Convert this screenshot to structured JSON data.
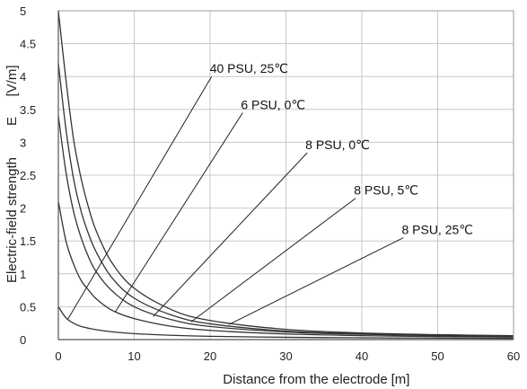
{
  "chart_data": {
    "type": "line",
    "title": "",
    "xlabel": "Distance from the electrode",
    "xlabel_unit": "[m]",
    "ylabel": "Electric-field strength",
    "ylabel_symbol": "E",
    "ylabel_unit": "[V/m]",
    "xlim": [
      0,
      60
    ],
    "ylim": [
      0,
      5
    ],
    "xticks": [
      0,
      10,
      20,
      30,
      40,
      50,
      60
    ],
    "yticks": [
      0,
      0.5,
      1,
      1.5,
      2,
      2.5,
      3,
      3.5,
      4,
      4.5,
      5
    ],
    "ytick_labels": [
      "0",
      "0.5",
      "1",
      "1.5",
      "2",
      "2.5",
      "3",
      "3.5",
      "4",
      "4.5",
      "5"
    ],
    "grid": true,
    "legend": "none",
    "line_color": "#333333",
    "series": [
      {
        "name": "40 PSU, 25℃",
        "x": [
          0,
          1,
          2,
          3,
          5,
          7,
          10,
          15,
          20,
          30,
          40,
          50,
          60
        ],
        "y": [
          0.5,
          0.33,
          0.25,
          0.2,
          0.15,
          0.12,
          0.09,
          0.065,
          0.05,
          0.035,
          0.027,
          0.022,
          0.018
        ],
        "annotation": {
          "text": "40 PSU, 25℃",
          "label_at": [
            20.2,
            4.0
          ],
          "point_at": [
            1.2,
            0.3
          ]
        }
      },
      {
        "name": "6 PSU, 0℃",
        "x": [
          0,
          1,
          2,
          3,
          4,
          5,
          7,
          10,
          15,
          20,
          30,
          40,
          50,
          60
        ],
        "y": [
          2.1,
          1.5,
          1.15,
          0.9,
          0.75,
          0.62,
          0.45,
          0.32,
          0.2,
          0.14,
          0.085,
          0.06,
          0.046,
          0.038
        ],
        "annotation": {
          "text": "6 PSU, 0℃",
          "label_at": [
            24.3,
            3.45
          ],
          "point_at": [
            7.5,
            0.42
          ]
        }
      },
      {
        "name": "8 PSU, 0℃",
        "x": [
          0,
          1,
          2,
          3,
          4,
          5,
          7,
          10,
          15,
          20,
          30,
          40,
          50,
          60
        ],
        "y": [
          3.4,
          2.55,
          1.95,
          1.55,
          1.25,
          1.03,
          0.75,
          0.5,
          0.3,
          0.2,
          0.115,
          0.08,
          0.06,
          0.048
        ],
        "annotation": {
          "text": "8 PSU, 0℃",
          "label_at": [
            32.8,
            2.84
          ],
          "point_at": [
            12.5,
            0.35
          ]
        }
      },
      {
        "name": "8 PSU, 5℃",
        "x": [
          0,
          1,
          2,
          3,
          4,
          5,
          7,
          10,
          15,
          20,
          30,
          40,
          50,
          60
        ],
        "y": [
          4.2,
          3.2,
          2.45,
          1.95,
          1.6,
          1.33,
          0.95,
          0.63,
          0.37,
          0.24,
          0.13,
          0.088,
          0.066,
          0.053
        ],
        "annotation": {
          "text": "8 PSU, 5℃",
          "label_at": [
            39.2,
            2.15
          ],
          "point_at": [
            17.5,
            0.27
          ]
        }
      },
      {
        "name": "8 PSU, 25℃",
        "x": [
          0,
          1,
          2,
          3,
          4,
          5,
          7,
          10,
          15,
          20,
          30,
          40,
          50,
          60
        ],
        "y": [
          5.0,
          3.95,
          3.05,
          2.45,
          2.0,
          1.65,
          1.18,
          0.78,
          0.45,
          0.29,
          0.155,
          0.1,
          0.075,
          0.06
        ],
        "annotation": {
          "text": "8 PSU, 25℃",
          "label_at": [
            45.5,
            1.55
          ],
          "point_at": [
            22.5,
            0.23
          ]
        }
      }
    ]
  }
}
